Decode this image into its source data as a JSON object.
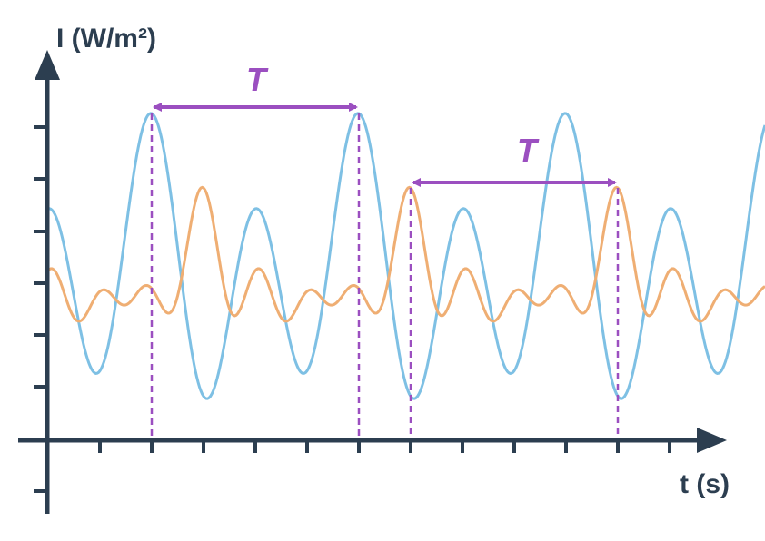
{
  "axes": {
    "y_label": "I (W/m²)",
    "x_label": "t (s)"
  },
  "annotations": [
    {
      "label": "T"
    },
    {
      "label": "T"
    }
  ]
}
